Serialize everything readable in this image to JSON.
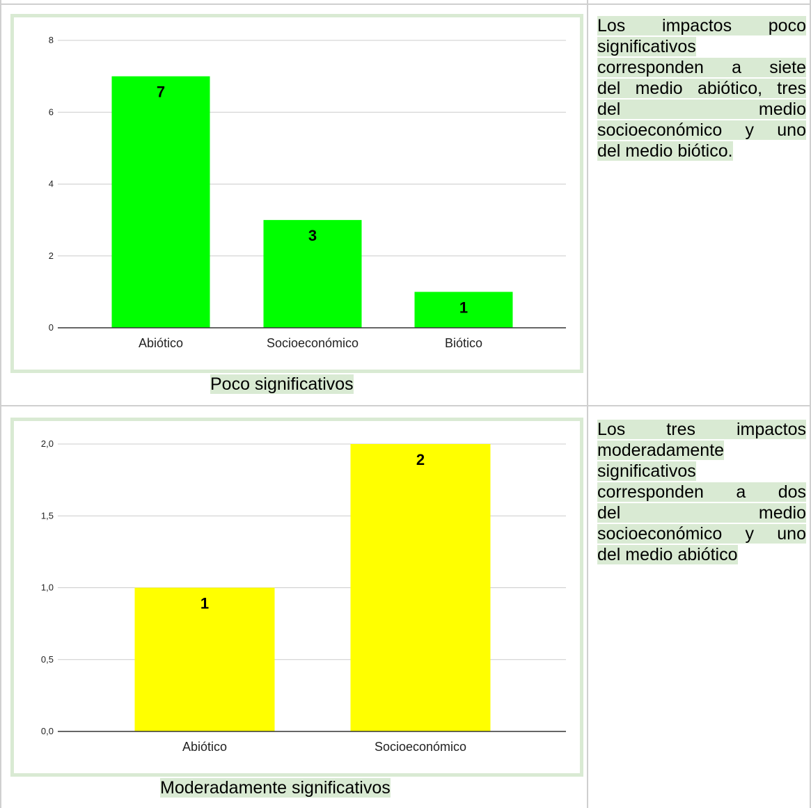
{
  "colors": {
    "accent_panel": "#d9ead3",
    "grid": "#cccccc",
    "axis": "#333333"
  },
  "chart_data": [
    {
      "type": "bar",
      "title": "",
      "xlabel": "",
      "ylabel": "",
      "categories": [
        "Abiótico",
        "Socioeconómico",
        "Biótico"
      ],
      "values": [
        7,
        3,
        1
      ],
      "data_labels": [
        "7",
        "3",
        "1"
      ],
      "ylim": [
        0,
        8
      ],
      "yticks": [
        0,
        2,
        4,
        6,
        8
      ],
      "ytick_labels": [
        "0",
        "2",
        "4",
        "6",
        "8"
      ],
      "color": "#00ff00",
      "grid": true,
      "legend": "none"
    },
    {
      "type": "bar",
      "title": "",
      "xlabel": "",
      "ylabel": "",
      "categories": [
        "Abiótico",
        "Socioeconómico"
      ],
      "values": [
        1,
        2
      ],
      "data_labels": [
        "1",
        "2"
      ],
      "ylim": [
        0,
        2
      ],
      "yticks": [
        0,
        0.5,
        1,
        1.5,
        2
      ],
      "ytick_labels": [
        "0,0",
        "0,5",
        "1,0",
        "1,5",
        "2,0"
      ],
      "color": "#ffff00",
      "grid": true,
      "legend": "none"
    }
  ],
  "captions": [
    "Poco significativos",
    "Moderadamente significativos"
  ],
  "descriptions": [
    [
      "Los impactos poco",
      "significativos",
      "corresponden a siete",
      "del medio abiótico, tres",
      "del medio",
      "socioeconómico y uno",
      "del medio biótico."
    ],
    [
      "Los tres impactos",
      "moderadamente",
      "significativos",
      "corresponden a dos",
      "del medio",
      "socioeconómico y uno",
      "del medio abiótico"
    ]
  ]
}
